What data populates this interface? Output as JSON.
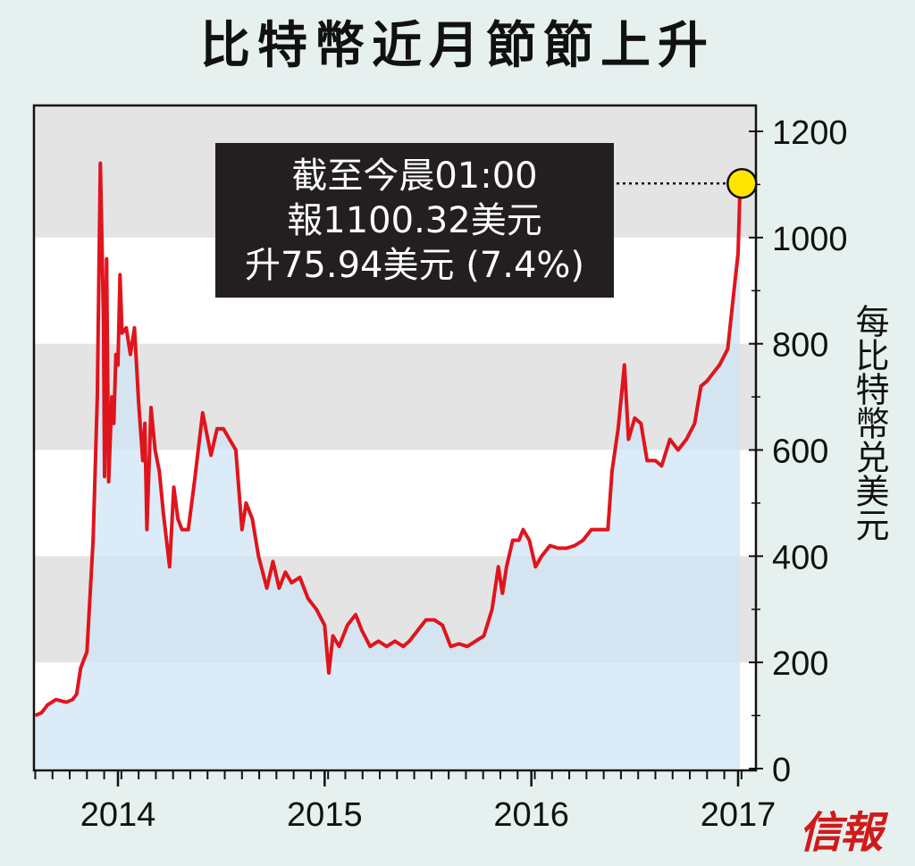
{
  "title": "比特幣近月節節上升",
  "logo": "信報",
  "chart_data": {
    "type": "area",
    "title": "比特幣近月節節上升",
    "xlabel": "",
    "ylabel": "每比特幣兑美元",
    "x_ticks": [
      "2014",
      "2015",
      "2016",
      "2017"
    ],
    "y_ticks": [
      0,
      200,
      400,
      600,
      800,
      1000,
      1200
    ],
    "ylim": [
      0,
      1200
    ],
    "xlim": [
      2013.6,
      2017.05
    ],
    "grid": "alternating horizontal bands",
    "series": [
      {
        "color": "#e0141c",
        "fill": "#d6ecf8",
        "points": [
          [
            2013.6,
            100
          ],
          [
            2013.63,
            105
          ],
          [
            2013.66,
            120
          ],
          [
            2013.7,
            130
          ],
          [
            2013.75,
            125
          ],
          [
            2013.78,
            130
          ],
          [
            2013.8,
            140
          ],
          [
            2013.82,
            190
          ],
          [
            2013.85,
            220
          ],
          [
            2013.88,
            430
          ],
          [
            2013.9,
            700
          ],
          [
            2013.915,
            1140
          ],
          [
            2013.93,
            850
          ],
          [
            2013.935,
            550
          ],
          [
            2013.945,
            960
          ],
          [
            2013.955,
            540
          ],
          [
            2013.97,
            700
          ],
          [
            2013.98,
            650
          ],
          [
            2013.99,
            780
          ],
          [
            2014.0,
            760
          ],
          [
            2014.01,
            930
          ],
          [
            2014.02,
            820
          ],
          [
            2014.04,
            830
          ],
          [
            2014.06,
            780
          ],
          [
            2014.08,
            830
          ],
          [
            2014.1,
            690
          ],
          [
            2014.12,
            580
          ],
          [
            2014.13,
            650
          ],
          [
            2014.14,
            450
          ],
          [
            2014.16,
            680
          ],
          [
            2014.18,
            600
          ],
          [
            2014.2,
            560
          ],
          [
            2014.22,
            480
          ],
          [
            2014.25,
            380
          ],
          [
            2014.27,
            530
          ],
          [
            2014.29,
            470
          ],
          [
            2014.31,
            450
          ],
          [
            2014.34,
            450
          ],
          [
            2014.37,
            540
          ],
          [
            2014.41,
            670
          ],
          [
            2014.45,
            590
          ],
          [
            2014.48,
            640
          ],
          [
            2014.51,
            640
          ],
          [
            2014.54,
            620
          ],
          [
            2014.57,
            600
          ],
          [
            2014.6,
            450
          ],
          [
            2014.62,
            500
          ],
          [
            2014.65,
            470
          ],
          [
            2014.68,
            400
          ],
          [
            2014.72,
            340
          ],
          [
            2014.75,
            390
          ],
          [
            2014.78,
            340
          ],
          [
            2014.81,
            370
          ],
          [
            2014.84,
            350
          ],
          [
            2014.88,
            360
          ],
          [
            2014.92,
            320
          ],
          [
            2014.96,
            300
          ],
          [
            2015.0,
            270
          ],
          [
            2015.02,
            180
          ],
          [
            2015.04,
            250
          ],
          [
            2015.07,
            230
          ],
          [
            2015.11,
            270
          ],
          [
            2015.15,
            290
          ],
          [
            2015.18,
            260
          ],
          [
            2015.22,
            230
          ],
          [
            2015.26,
            240
          ],
          [
            2015.3,
            230
          ],
          [
            2015.34,
            240
          ],
          [
            2015.38,
            230
          ],
          [
            2015.41,
            240
          ],
          [
            2015.45,
            260
          ],
          [
            2015.49,
            280
          ],
          [
            2015.53,
            280
          ],
          [
            2015.57,
            270
          ],
          [
            2015.61,
            230
          ],
          [
            2015.65,
            235
          ],
          [
            2015.69,
            230
          ],
          [
            2015.73,
            240
          ],
          [
            2015.77,
            250
          ],
          [
            2015.81,
            300
          ],
          [
            2015.84,
            380
          ],
          [
            2015.86,
            330
          ],
          [
            2015.88,
            380
          ],
          [
            2015.91,
            430
          ],
          [
            2015.94,
            430
          ],
          [
            2015.96,
            450
          ],
          [
            2015.99,
            430
          ],
          [
            2016.02,
            380
          ],
          [
            2016.05,
            400
          ],
          [
            2016.09,
            420
          ],
          [
            2016.13,
            415
          ],
          [
            2016.17,
            415
          ],
          [
            2016.21,
            420
          ],
          [
            2016.25,
            430
          ],
          [
            2016.29,
            450
          ],
          [
            2016.33,
            450
          ],
          [
            2016.37,
            450
          ],
          [
            2016.39,
            560
          ],
          [
            2016.42,
            640
          ],
          [
            2016.45,
            760
          ],
          [
            2016.47,
            620
          ],
          [
            2016.5,
            660
          ],
          [
            2016.53,
            650
          ],
          [
            2016.56,
            580
          ],
          [
            2016.6,
            580
          ],
          [
            2016.63,
            570
          ],
          [
            2016.67,
            620
          ],
          [
            2016.71,
            600
          ],
          [
            2016.75,
            620
          ],
          [
            2016.79,
            650
          ],
          [
            2016.82,
            720
          ],
          [
            2016.85,
            730
          ],
          [
            2016.88,
            745
          ],
          [
            2016.91,
            760
          ],
          [
            2016.95,
            790
          ],
          [
            2016.98,
            900
          ],
          [
            2017.0,
            970
          ],
          [
            2017.01,
            1100
          ]
        ]
      }
    ],
    "annotation": {
      "lines": [
        "截至今晨01:00",
        "報1100.32美元",
        "升75.94美元 (7.4%)"
      ],
      "point": [
        2017.01,
        1100.32
      ],
      "marker_color": "#ffe600"
    }
  }
}
